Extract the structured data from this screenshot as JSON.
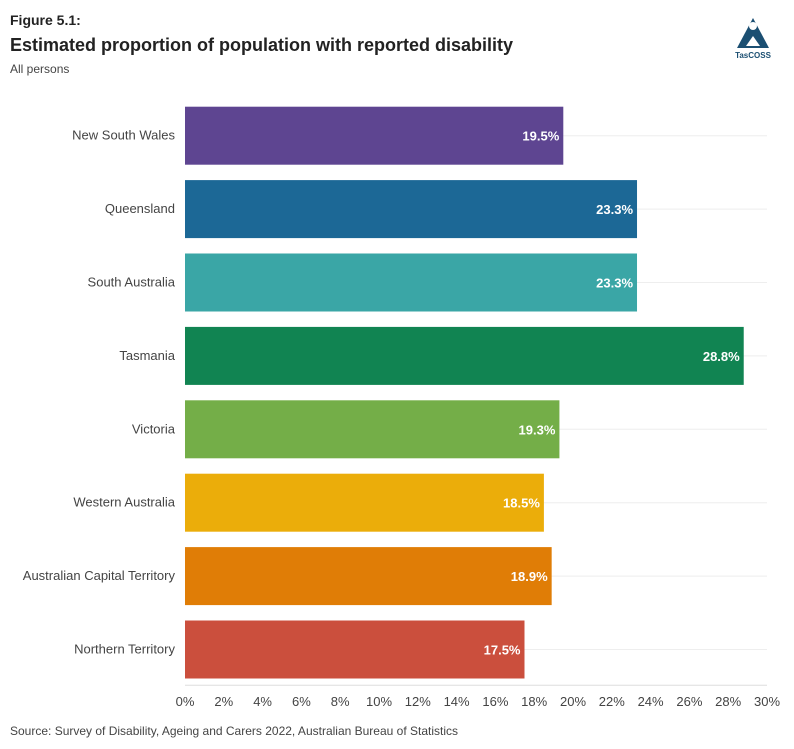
{
  "figure_label": "Figure 5.1:",
  "logo_text": "TasCOSS",
  "chart_data": {
    "type": "bar",
    "orientation": "horizontal",
    "title": "Estimated proportion of population with reported disability",
    "subtitle": "All persons",
    "categories": [
      "New South Wales",
      "Queensland",
      "South Australia",
      "Tasmania",
      "Victoria",
      "Western Australia",
      "Australian Capital Territory",
      "Northern Territory"
    ],
    "values": [
      19.5,
      23.3,
      23.3,
      28.8,
      19.3,
      18.5,
      18.9,
      17.5
    ],
    "data_labels": [
      "19.5%",
      "23.3%",
      "23.3%",
      "28.8%",
      "19.3%",
      "18.5%",
      "18.9%",
      "17.5%"
    ],
    "colors": [
      "#5e4591",
      "#1c6896",
      "#3aa6a6",
      "#118452",
      "#74ae48",
      "#ebad0a",
      "#e07d06",
      "#cb4f3d"
    ],
    "xlim": [
      0,
      30
    ],
    "xticks": [
      "0%",
      "2%",
      "4%",
      "6%",
      "8%",
      "10%",
      "12%",
      "14%",
      "16%",
      "18%",
      "20%",
      "22%",
      "24%",
      "26%",
      "28%",
      "30%"
    ],
    "xlabel": "",
    "ylabel": "",
    "source": "Source: Survey of Disability, Ageing and Carers 2022, Australian Bureau of Statistics"
  }
}
